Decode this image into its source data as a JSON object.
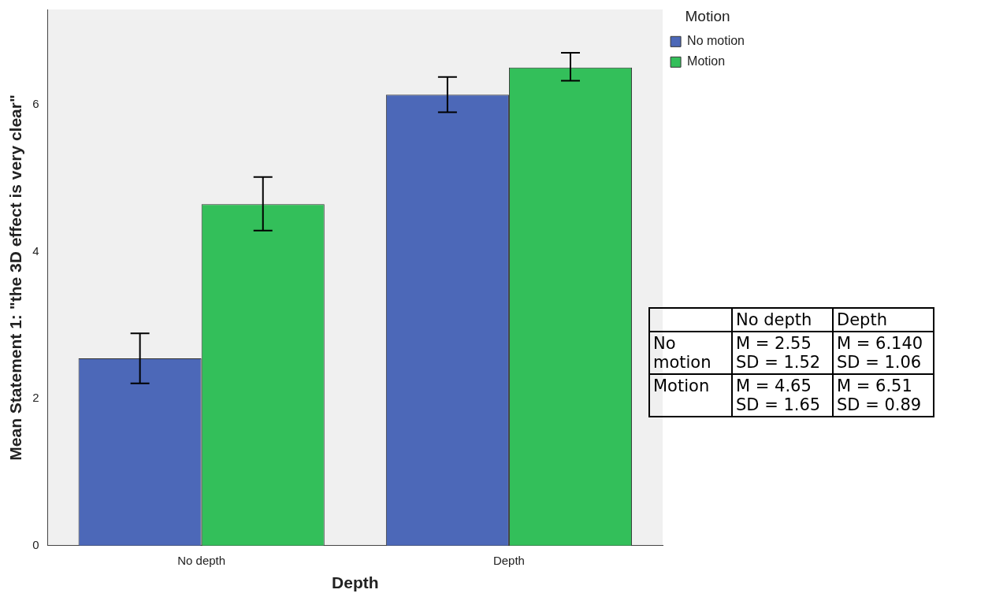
{
  "chart_data": {
    "type": "bar",
    "xlabel": "Depth",
    "ylabel": "Mean Statement 1: \"the 3D effect is very clear\"",
    "legend_title": "Motion",
    "legend": "top right",
    "categories": [
      "No depth",
      "Depth"
    ],
    "series": [
      {
        "name": "No motion",
        "color": "#4c68b8",
        "values": [
          2.55,
          6.14
        ],
        "errors": [
          [
            2.21,
            2.89
          ],
          [
            5.9,
            6.38
          ]
        ]
      },
      {
        "name": "Motion",
        "color": "#33bf5a",
        "values": [
          4.65,
          6.51
        ],
        "errors": [
          [
            4.29,
            5.02
          ],
          [
            6.33,
            6.71
          ]
        ]
      }
    ],
    "annotations": [
      "No depth",
      "Depth",
      "No motion",
      "M = 2.55 SD = 1.52",
      "M = 6.140 SD = 1.06",
      "Motion",
      "M = 4.65 SD = 1.65",
      "M = 6.51 SD = 0.89"
    ],
    "ylim": [
      0,
      7.3
    ],
    "yticks": [
      0,
      2,
      4,
      6
    ],
    "grid": false
  }
}
